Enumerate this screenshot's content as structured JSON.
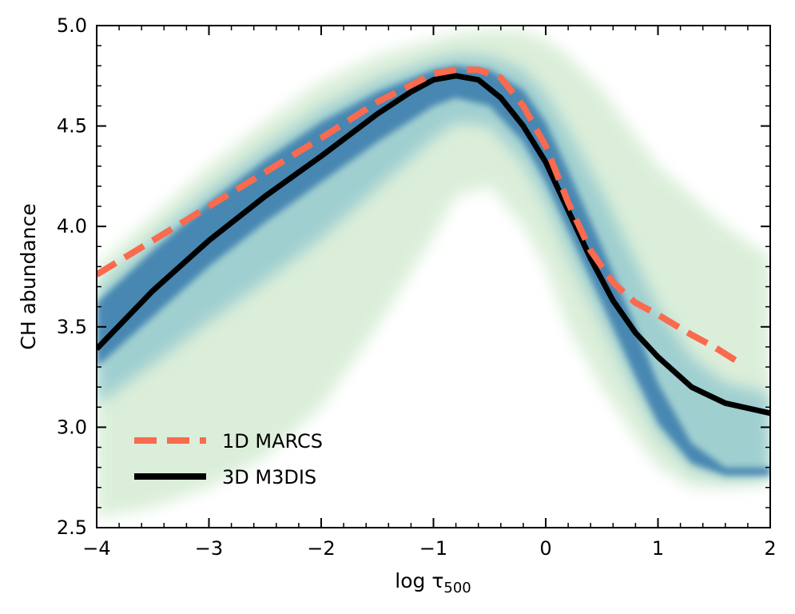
{
  "chart_data": {
    "type": "line",
    "xlabel": "log τ",
    "xlabel_subscript": "500",
    "ylabel": "CH abundance",
    "xlim": [
      -4,
      2
    ],
    "ylim": [
      2.5,
      5.0
    ],
    "x_ticks": [
      -4,
      -3,
      -2,
      -1,
      0,
      1,
      2
    ],
    "x_tick_labels": [
      "−4",
      "−3",
      "−2",
      "−1",
      "0",
      "1",
      "2"
    ],
    "y_ticks": [
      2.5,
      3.0,
      3.5,
      4.0,
      4.5,
      5.0
    ],
    "y_tick_labels": [
      "2.5",
      "3.0",
      "3.5",
      "4.0",
      "4.5",
      "5.0"
    ],
    "grid": false,
    "legend_position": "lower-left",
    "colors": {
      "marcs": "#f96a4f",
      "m3dis": "#000000",
      "density_core": "#2a6fa8",
      "density_mid": "#6fb6c9",
      "density_outer": "#cfe9cd"
    },
    "series": [
      {
        "name": "1D MARCS",
        "style": "dashed",
        "x": [
          -4.0,
          -3.5,
          -3.0,
          -2.5,
          -2.0,
          -1.5,
          -1.0,
          -0.8,
          -0.6,
          -0.4,
          -0.2,
          0.0,
          0.2,
          0.4,
          0.6,
          0.8,
          1.0,
          1.3,
          1.5,
          1.7
        ],
        "y": [
          3.76,
          3.93,
          4.1,
          4.27,
          4.44,
          4.62,
          4.76,
          4.78,
          4.78,
          4.74,
          4.6,
          4.4,
          4.12,
          3.88,
          3.72,
          3.62,
          3.56,
          3.46,
          3.4,
          3.33
        ]
      },
      {
        "name": "3D M3DIS",
        "style": "solid",
        "x": [
          -4.0,
          -3.5,
          -3.0,
          -2.5,
          -2.0,
          -1.5,
          -1.2,
          -1.0,
          -0.8,
          -0.6,
          -0.4,
          -0.2,
          0.0,
          0.2,
          0.4,
          0.6,
          0.8,
          1.0,
          1.3,
          1.6,
          2.0
        ],
        "y": [
          3.39,
          3.68,
          3.93,
          4.15,
          4.35,
          4.56,
          4.67,
          4.73,
          4.75,
          4.73,
          4.64,
          4.5,
          4.32,
          4.08,
          3.84,
          3.63,
          3.47,
          3.35,
          3.2,
          3.12,
          3.07
        ]
      }
    ],
    "density_envelope": {
      "x": [
        -4.0,
        -3.5,
        -3.0,
        -2.5,
        -2.0,
        -1.5,
        -1.0,
        -0.8,
        -0.5,
        -0.2,
        0.0,
        0.2,
        0.5,
        0.8,
        1.0,
        1.3,
        1.6,
        2.0
      ],
      "core_upper": [
        3.62,
        3.88,
        4.12,
        4.33,
        4.52,
        4.67,
        4.78,
        4.8,
        4.78,
        4.68,
        4.52,
        4.28,
        3.9,
        3.5,
        3.22,
        2.92,
        2.8,
        2.8
      ],
      "core_lower": [
        3.3,
        3.55,
        3.8,
        4.02,
        4.22,
        4.42,
        4.6,
        4.64,
        4.6,
        4.42,
        4.22,
        3.98,
        3.62,
        3.25,
        3.02,
        2.82,
        2.76,
        2.76
      ],
      "outer_upper": [
        3.8,
        4.05,
        4.3,
        4.52,
        4.72,
        4.85,
        4.93,
        4.96,
        4.98,
        4.97,
        4.93,
        4.85,
        4.68,
        4.45,
        4.3,
        4.15,
        4.0,
        3.85
      ],
      "outer_lower": [
        2.55,
        2.6,
        2.7,
        2.85,
        3.1,
        3.5,
        3.95,
        4.15,
        4.2,
        4.0,
        3.8,
        3.5,
        3.2,
        2.95,
        2.8,
        2.7,
        2.7,
        2.72
      ]
    }
  }
}
